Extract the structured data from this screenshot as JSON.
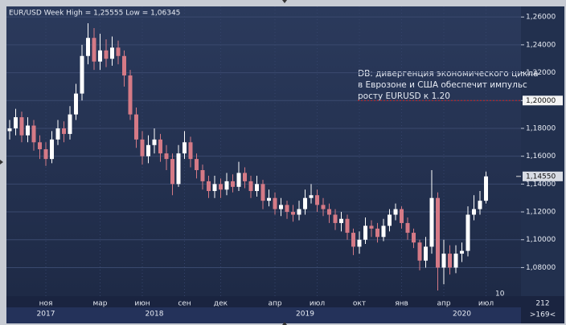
{
  "chart_data": {
    "type": "candlestick",
    "title": "EUR/USD Week High = 1,25555 Low = 1,06345",
    "annotation": [
      "DB: дивергенция экономического цикла",
      "в Еврозоне и США обеспечит импульс",
      "росту EURUSD к 1.20"
    ],
    "categories": [
      null,
      null,
      null,
      null,
      null,
      null,
      "ноя",
      null,
      null,
      null,
      null,
      null,
      null,
      null,
      null,
      "мар",
      null,
      null,
      null,
      null,
      null,
      null,
      "июн",
      null,
      null,
      null,
      null,
      null,
      null,
      "сен",
      null,
      null,
      null,
      null,
      null,
      "дек",
      null,
      null,
      null,
      null,
      null,
      null,
      null,
      null,
      "апр",
      null,
      null,
      null,
      null,
      null,
      null,
      "июл",
      null,
      null,
      null,
      null,
      null,
      null,
      "окт",
      null,
      null,
      null,
      null,
      null,
      null,
      "янв",
      null,
      null,
      null,
      null,
      null,
      null,
      "апр",
      null,
      null,
      null,
      null,
      null,
      null,
      "июл"
    ],
    "years": [
      null,
      null,
      null,
      null,
      null,
      null,
      "2017",
      null,
      null,
      null,
      null,
      null,
      null,
      null,
      null,
      null,
      null,
      null,
      null,
      null,
      null,
      null,
      null,
      null,
      "2018",
      null,
      null,
      null,
      null,
      null,
      null,
      null,
      null,
      null,
      null,
      null,
      null,
      null,
      null,
      null,
      null,
      null,
      null,
      null,
      null,
      null,
      null,
      null,
      null,
      "2019",
      null,
      null,
      null,
      null,
      null,
      null,
      null,
      null,
      null,
      null,
      null,
      null,
      null,
      null,
      null,
      null,
      null,
      null,
      null,
      null,
      null,
      null,
      null,
      null,
      null,
      "2020",
      null,
      null,
      null,
      null
    ],
    "open": [
      1.178,
      1.18,
      1.188,
      1.175,
      1.182,
      1.17,
      1.165,
      1.158,
      1.172,
      1.18,
      1.176,
      1.19,
      1.205,
      1.232,
      1.245,
      1.228,
      1.236,
      1.23,
      1.238,
      1.232,
      1.218,
      1.19,
      1.172,
      1.16,
      1.168,
      1.172,
      1.162,
      1.158,
      1.14,
      1.162,
      1.17,
      1.158,
      1.15,
      1.142,
      1.135,
      1.14,
      1.136,
      1.142,
      1.138,
      1.148,
      1.142,
      1.135,
      1.14,
      1.128,
      1.13,
      1.122,
      1.125,
      1.12,
      1.118,
      1.122,
      1.13,
      1.132,
      1.125,
      1.122,
      1.118,
      1.112,
      1.115,
      1.105,
      1.095,
      1.1,
      1.11,
      1.108,
      1.102,
      1.11,
      1.118,
      1.122,
      1.112,
      1.105,
      1.098,
      1.085,
      1.095,
      1.13,
      1.08,
      1.09,
      1.08,
      1.09,
      1.092,
      1.118,
      1.122,
      1.128
    ],
    "high": [
      1.186,
      1.194,
      1.192,
      1.188,
      1.186,
      1.175,
      1.17,
      1.178,
      1.186,
      1.185,
      1.196,
      1.212,
      1.24,
      1.2555,
      1.252,
      1.248,
      1.244,
      1.246,
      1.243,
      1.236,
      1.222,
      1.195,
      1.178,
      1.175,
      1.18,
      1.176,
      1.168,
      1.162,
      1.168,
      1.178,
      1.174,
      1.162,
      1.154,
      1.146,
      1.146,
      1.144,
      1.148,
      1.147,
      1.156,
      1.152,
      1.146,
      1.146,
      1.143,
      1.136,
      1.134,
      1.13,
      1.128,
      1.125,
      1.128,
      1.136,
      1.14,
      1.136,
      1.13,
      1.126,
      1.122,
      1.12,
      1.118,
      1.108,
      1.106,
      1.116,
      1.114,
      1.112,
      1.115,
      1.122,
      1.126,
      1.124,
      1.116,
      1.108,
      1.1,
      1.102,
      1.15,
      1.134,
      1.1,
      1.096,
      1.096,
      1.098,
      1.124,
      1.132,
      1.135,
      1.149
    ],
    "low": [
      1.172,
      1.175,
      1.17,
      1.17,
      1.164,
      1.158,
      1.153,
      1.155,
      1.168,
      1.17,
      1.172,
      1.186,
      1.2,
      1.226,
      1.222,
      1.222,
      1.224,
      1.225,
      1.226,
      1.21,
      1.186,
      1.166,
      1.154,
      1.155,
      1.162,
      1.156,
      1.15,
      1.132,
      1.138,
      1.158,
      1.152,
      1.144,
      1.136,
      1.13,
      1.13,
      1.13,
      1.132,
      1.134,
      1.135,
      1.137,
      1.13,
      1.131,
      1.122,
      1.124,
      1.118,
      1.117,
      1.115,
      1.113,
      1.114,
      1.118,
      1.126,
      1.12,
      1.117,
      1.112,
      1.107,
      1.106,
      1.1,
      1.089,
      1.09,
      1.097,
      1.102,
      1.098,
      1.099,
      1.106,
      1.114,
      1.108,
      1.1,
      1.094,
      1.078,
      1.08,
      1.09,
      1.0635,
      1.068,
      1.075,
      1.076,
      1.084,
      1.088,
      1.114,
      1.118,
      1.126
    ],
    "close": [
      1.18,
      1.188,
      1.175,
      1.182,
      1.17,
      1.165,
      1.158,
      1.172,
      1.18,
      1.176,
      1.19,
      1.205,
      1.232,
      1.245,
      1.228,
      1.236,
      1.23,
      1.238,
      1.232,
      1.218,
      1.19,
      1.172,
      1.16,
      1.168,
      1.172,
      1.162,
      1.158,
      1.14,
      1.162,
      1.17,
      1.158,
      1.15,
      1.142,
      1.135,
      1.14,
      1.136,
      1.142,
      1.138,
      1.148,
      1.142,
      1.135,
      1.14,
      1.128,
      1.13,
      1.122,
      1.125,
      1.12,
      1.118,
      1.122,
      1.13,
      1.132,
      1.125,
      1.122,
      1.118,
      1.112,
      1.115,
      1.105,
      1.095,
      1.1,
      1.11,
      1.108,
      1.102,
      1.11,
      1.118,
      1.122,
      1.112,
      1.105,
      1.098,
      1.085,
      1.095,
      1.13,
      1.08,
      1.09,
      1.08,
      1.09,
      1.092,
      1.118,
      1.122,
      1.128,
      1.1455
    ],
    "up_color": "#ffffff",
    "down_color": "#d57a86",
    "ylim": [
      1.0595,
      1.2676
    ],
    "yticks": [
      {
        "value": 1.08,
        "label": "1,08000"
      },
      {
        "value": 1.1,
        "label": "1,10000"
      },
      {
        "value": 1.12,
        "label": "1,12000"
      },
      {
        "value": 1.14,
        "label": "1,14000"
      },
      {
        "value": 1.16,
        "label": "1,16000"
      },
      {
        "value": 1.18,
        "label": "1,18000"
      },
      {
        "value": 1.2,
        "label": "1,20000"
      },
      {
        "value": 1.22,
        "label": "1,22000"
      },
      {
        "value": 1.24,
        "label": "1,24000"
      },
      {
        "value": 1.26,
        "label": "1,26000"
      }
    ],
    "grid": true,
    "reference_line": {
      "value": 1.2,
      "label": "1,20000",
      "color": "#cc2222"
    },
    "last_price": {
      "value": 1.1455,
      "label": "1,14550"
    },
    "marker": "10",
    "footer": {
      "count": "212",
      "zoom": ">169<"
    }
  }
}
